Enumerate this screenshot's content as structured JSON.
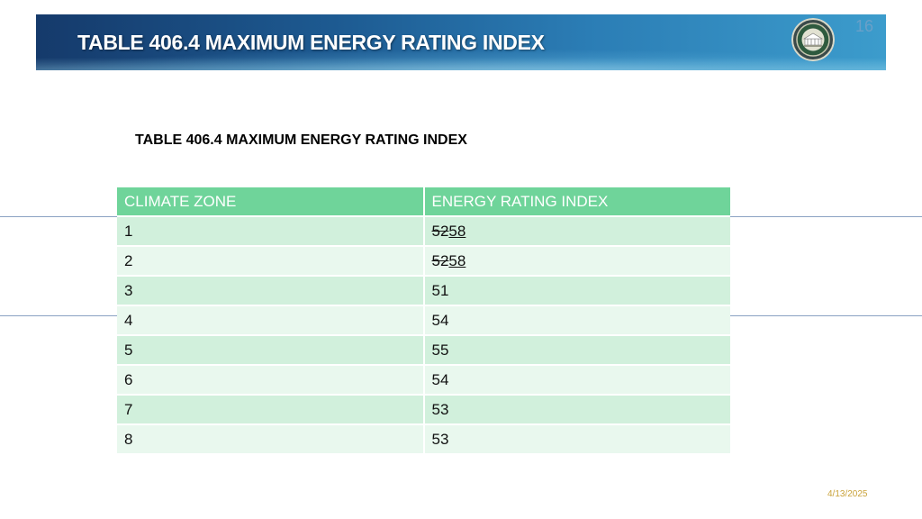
{
  "header": {
    "title": "TABLE 406.4 MAXIMUM ENERGY RATING INDEX",
    "slide_number": "16",
    "seal_icon": "seal-icon"
  },
  "subheading": "TABLE 406.4 MAXIMUM ENERGY RATING INDEX",
  "table": {
    "columns": [
      "CLIMATE ZONE",
      "ENERGY RATING INDEX"
    ],
    "rows": [
      {
        "zone": "1",
        "deleted": "52",
        "inserted": "58",
        "value": ""
      },
      {
        "zone": "2",
        "deleted": "52",
        "inserted": "58",
        "value": ""
      },
      {
        "zone": "3",
        "deleted": "",
        "inserted": "",
        "value": "51"
      },
      {
        "zone": "4",
        "deleted": "",
        "inserted": "",
        "value": "54"
      },
      {
        "zone": "5",
        "deleted": "",
        "inserted": "",
        "value": "55"
      },
      {
        "zone": "6",
        "deleted": "",
        "inserted": "",
        "value": "54"
      },
      {
        "zone": "7",
        "deleted": "",
        "inserted": "",
        "value": "53"
      },
      {
        "zone": "8",
        "deleted": "",
        "inserted": "",
        "value": "53"
      }
    ]
  },
  "footer": {
    "date": "4/13/2025"
  },
  "colors": {
    "banner_dark": "#153a6b",
    "banner_light": "#3c9ccc",
    "table_header": "#6fd49a",
    "row_band_a": "#d1f0dc",
    "row_band_b": "#e9f8ee",
    "date_text": "#c9a23a"
  }
}
